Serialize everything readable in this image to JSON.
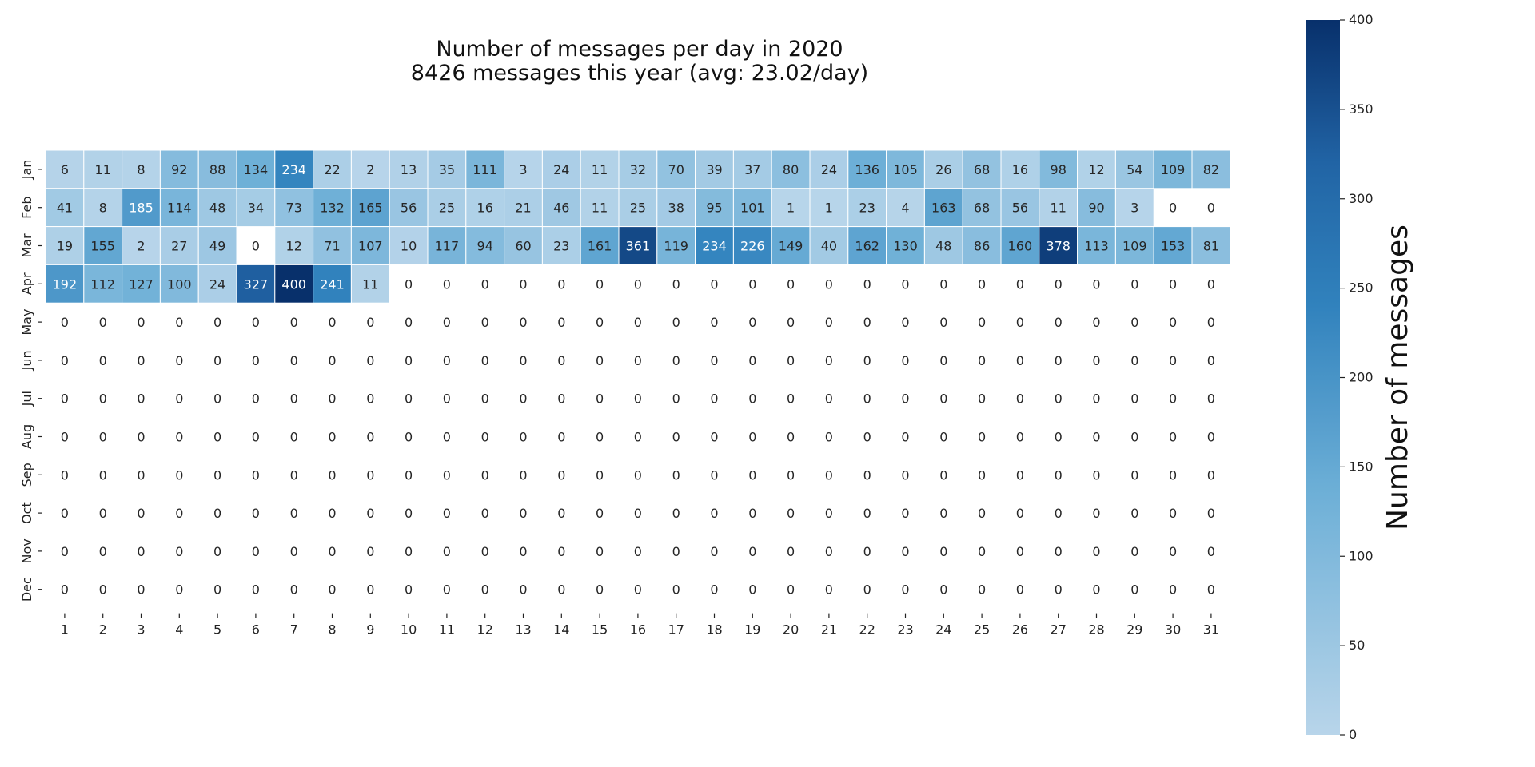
{
  "chart_data": {
    "type": "heatmap",
    "title": "Number of messages per day in 2020",
    "subtitle": "8426 messages this year (avg: 23.02/day)",
    "x_tick_labels": [
      "1",
      "2",
      "3",
      "4",
      "5",
      "6",
      "7",
      "8",
      "9",
      "10",
      "11",
      "12",
      "13",
      "14",
      "15",
      "16",
      "17",
      "18",
      "19",
      "20",
      "21",
      "22",
      "23",
      "24",
      "25",
      "26",
      "27",
      "28",
      "29",
      "30",
      "31"
    ],
    "y_tick_labels": [
      "Jan",
      "Feb",
      "Mar",
      "Apr",
      "May",
      "Jun",
      "Jul",
      "Aug",
      "Sep",
      "Oct",
      "Nov",
      "Dec"
    ],
    "values": [
      [
        6,
        11,
        8,
        92,
        88,
        134,
        234,
        22,
        2,
        13,
        35,
        111,
        3,
        24,
        11,
        32,
        70,
        39,
        37,
        80,
        24,
        136,
        105,
        26,
        68,
        16,
        98,
        12,
        54,
        109,
        82
      ],
      [
        41,
        8,
        185,
        114,
        48,
        34,
        73,
        132,
        165,
        56,
        25,
        16,
        21,
        46,
        11,
        25,
        38,
        95,
        101,
        1,
        1,
        23,
        4,
        163,
        68,
        56,
        11,
        90,
        3,
        0,
        0
      ],
      [
        19,
        155,
        2,
        27,
        49,
        0,
        12,
        71,
        107,
        10,
        117,
        94,
        60,
        23,
        161,
        361,
        119,
        234,
        226,
        149,
        40,
        162,
        130,
        48,
        86,
        160,
        378,
        113,
        109,
        153,
        81
      ],
      [
        192,
        112,
        127,
        100,
        24,
        327,
        400,
        241,
        11,
        0,
        0,
        0,
        0,
        0,
        0,
        0,
        0,
        0,
        0,
        0,
        0,
        0,
        0,
        0,
        0,
        0,
        0,
        0,
        0,
        0,
        0
      ],
      [
        0,
        0,
        0,
        0,
        0,
        0,
        0,
        0,
        0,
        0,
        0,
        0,
        0,
        0,
        0,
        0,
        0,
        0,
        0,
        0,
        0,
        0,
        0,
        0,
        0,
        0,
        0,
        0,
        0,
        0,
        0
      ],
      [
        0,
        0,
        0,
        0,
        0,
        0,
        0,
        0,
        0,
        0,
        0,
        0,
        0,
        0,
        0,
        0,
        0,
        0,
        0,
        0,
        0,
        0,
        0,
        0,
        0,
        0,
        0,
        0,
        0,
        0,
        0
      ],
      [
        0,
        0,
        0,
        0,
        0,
        0,
        0,
        0,
        0,
        0,
        0,
        0,
        0,
        0,
        0,
        0,
        0,
        0,
        0,
        0,
        0,
        0,
        0,
        0,
        0,
        0,
        0,
        0,
        0,
        0,
        0
      ],
      [
        0,
        0,
        0,
        0,
        0,
        0,
        0,
        0,
        0,
        0,
        0,
        0,
        0,
        0,
        0,
        0,
        0,
        0,
        0,
        0,
        0,
        0,
        0,
        0,
        0,
        0,
        0,
        0,
        0,
        0,
        0
      ],
      [
        0,
        0,
        0,
        0,
        0,
        0,
        0,
        0,
        0,
        0,
        0,
        0,
        0,
        0,
        0,
        0,
        0,
        0,
        0,
        0,
        0,
        0,
        0,
        0,
        0,
        0,
        0,
        0,
        0,
        0,
        0
      ],
      [
        0,
        0,
        0,
        0,
        0,
        0,
        0,
        0,
        0,
        0,
        0,
        0,
        0,
        0,
        0,
        0,
        0,
        0,
        0,
        0,
        0,
        0,
        0,
        0,
        0,
        0,
        0,
        0,
        0,
        0,
        0
      ],
      [
        0,
        0,
        0,
        0,
        0,
        0,
        0,
        0,
        0,
        0,
        0,
        0,
        0,
        0,
        0,
        0,
        0,
        0,
        0,
        0,
        0,
        0,
        0,
        0,
        0,
        0,
        0,
        0,
        0,
        0,
        0
      ],
      [
        0,
        0,
        0,
        0,
        0,
        0,
        0,
        0,
        0,
        0,
        0,
        0,
        0,
        0,
        0,
        0,
        0,
        0,
        0,
        0,
        0,
        0,
        0,
        0,
        0,
        0,
        0,
        0,
        0,
        0,
        0
      ]
    ],
    "zero_cells_blank": true,
    "colorbar": {
      "label": "Number of messages",
      "range": [
        0,
        400
      ],
      "ticks": [
        "0",
        "50",
        "100",
        "150",
        "200",
        "250",
        "300",
        "350",
        "400"
      ],
      "color_low": "#b8d5ea",
      "color_high": "#08306b",
      "colormap": "Blues (light-clipped)"
    },
    "cell_border_color": "#ffffff",
    "grid": false
  }
}
